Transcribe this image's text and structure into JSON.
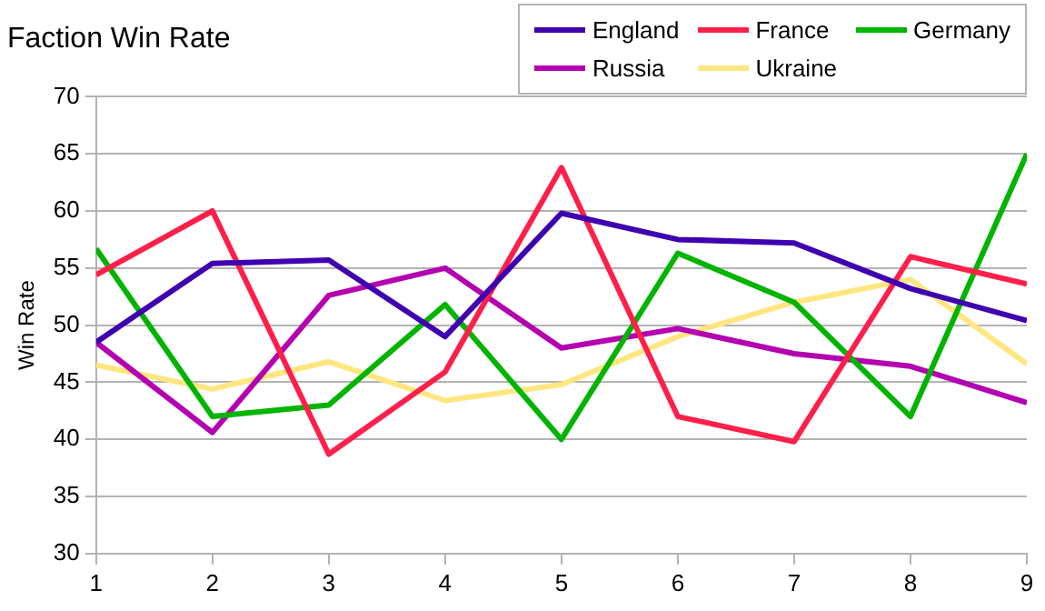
{
  "chart_data": {
    "type": "line",
    "title": "Faction Win Rate",
    "ylabel": "Win Rate",
    "x": [
      1,
      2,
      3,
      4,
      5,
      6,
      7,
      8,
      9
    ],
    "xlim": [
      1,
      9
    ],
    "xticks": [
      1,
      2,
      3,
      4,
      5,
      6,
      7,
      8,
      9
    ],
    "ylim": [
      30,
      70
    ],
    "yticks": [
      30,
      35,
      40,
      45,
      50,
      55,
      60,
      65,
      70
    ],
    "grid": "y",
    "legend": "top right",
    "marker": "none",
    "series": [
      {
        "name": "England",
        "color": "#3f00b0",
        "values": [
          48.5,
          55.4,
          55.7,
          49,
          59.8,
          57.5,
          57.2,
          53.2,
          50.4
        ]
      },
      {
        "name": "France",
        "color": "#ff1f4b",
        "values": [
          54.4,
          60,
          38.7,
          45.9,
          63.8,
          42,
          39.8,
          56,
          53.6
        ]
      },
      {
        "name": "Germany",
        "color": "#00b400",
        "values": [
          56.7,
          42,
          43,
          51.8,
          40,
          56.3,
          52,
          42,
          65
        ]
      },
      {
        "name": "Russia",
        "color": "#b400b0",
        "values": [
          48.5,
          40.6,
          52.6,
          55,
          48,
          49.7,
          47.5,
          46.4,
          43.2
        ]
      },
      {
        "name": "Ukraine",
        "color": "#ffe680",
        "values": [
          46.5,
          44.4,
          46.8,
          43.4,
          44.8,
          49,
          52,
          54,
          46.6
        ]
      }
    ]
  }
}
